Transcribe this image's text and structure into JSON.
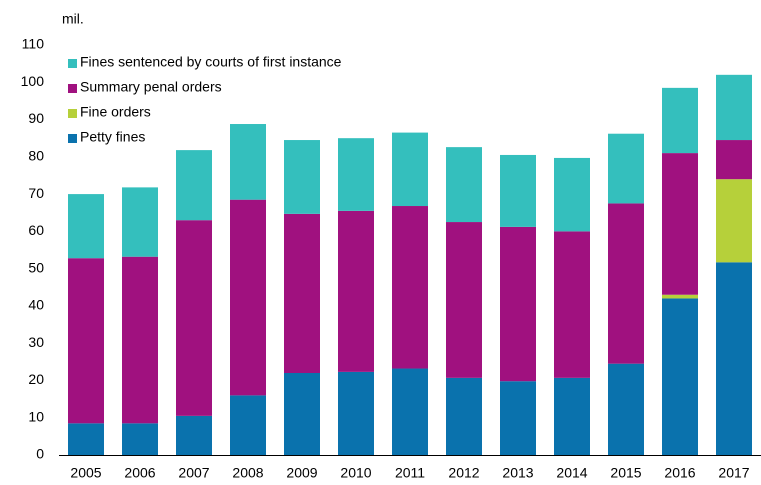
{
  "chart_data": {
    "type": "stacked_bar",
    "ylabel": "mil.",
    "categories": [
      "2005",
      "2006",
      "2007",
      "2008",
      "2009",
      "2010",
      "2011",
      "2012",
      "2013",
      "2014",
      "2015",
      "2016",
      "2017"
    ],
    "series": [
      {
        "name": "Petty fines",
        "color": "#0a72ad",
        "values": [
          8.5,
          8.5,
          10.5,
          16,
          22,
          22.3,
          23.2,
          20.7,
          19.8,
          20.7,
          24.5,
          42,
          51.7
        ]
      },
      {
        "name": "Fine orders",
        "color": "#b6d03a",
        "values": [
          0,
          0,
          0,
          0,
          0,
          0,
          0,
          0,
          0,
          0,
          0,
          1,
          22.3
        ]
      },
      {
        "name": "Summary penal orders",
        "color": "#a0117f",
        "values": [
          44.3,
          44.7,
          52.5,
          52.5,
          42.7,
          43.2,
          43.6,
          41.8,
          41.4,
          39.3,
          43,
          38,
          10.5
        ]
      },
      {
        "name": "Fines sentenced by courts of first instance",
        "color": "#34bfbd",
        "values": [
          17.2,
          18.6,
          18.8,
          20.3,
          19.8,
          19.5,
          19.7,
          20.1,
          19.3,
          19.7,
          18.7,
          17.5,
          17.5
        ]
      }
    ],
    "ylim": [
      0,
      110
    ],
    "yticks": [
      0,
      10,
      20,
      30,
      40,
      50,
      60,
      70,
      80,
      90,
      100,
      110
    ],
    "grid": false,
    "legend": "upper left"
  }
}
